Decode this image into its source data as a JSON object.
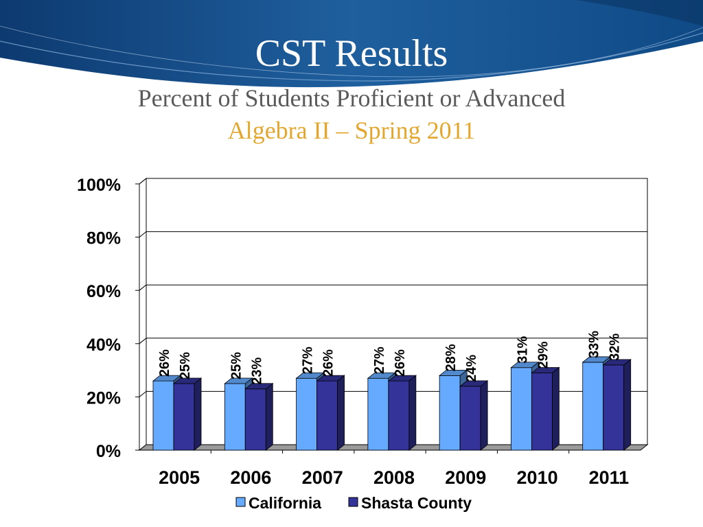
{
  "slide": {
    "title": "CST Results",
    "subtitle": "Percent of Students Proficient or Advanced",
    "subtitle2": "Algebra II – Spring 2011"
  },
  "colors": {
    "banner": "#1f5f9e",
    "california": "#66aaff",
    "shasta": "#333399",
    "subtitle2": "#e3a72f"
  },
  "chart_data": {
    "type": "bar",
    "categories": [
      "2005",
      "2006",
      "2007",
      "2008",
      "2009",
      "2010",
      "2011"
    ],
    "series": [
      {
        "name": "California",
        "values": [
          26,
          25,
          27,
          27,
          28,
          31,
          33
        ]
      },
      {
        "name": "Shasta County",
        "values": [
          25,
          23,
          26,
          26,
          24,
          29,
          32
        ]
      }
    ],
    "data_labels": [
      [
        "26%",
        "25%",
        "27%",
        "27%",
        "28%",
        "31%",
        "33%"
      ],
      [
        "25%",
        "23%",
        "26%",
        "26%",
        "24%",
        "29%",
        "32%"
      ]
    ],
    "y_ticks": [
      "0%",
      "20%",
      "40%",
      "60%",
      "80%",
      "100%"
    ],
    "ylim": [
      0,
      100
    ],
    "y_tick_step": 20,
    "grid": true,
    "legend_position": "bottom",
    "style": "3d-clustered-column"
  }
}
